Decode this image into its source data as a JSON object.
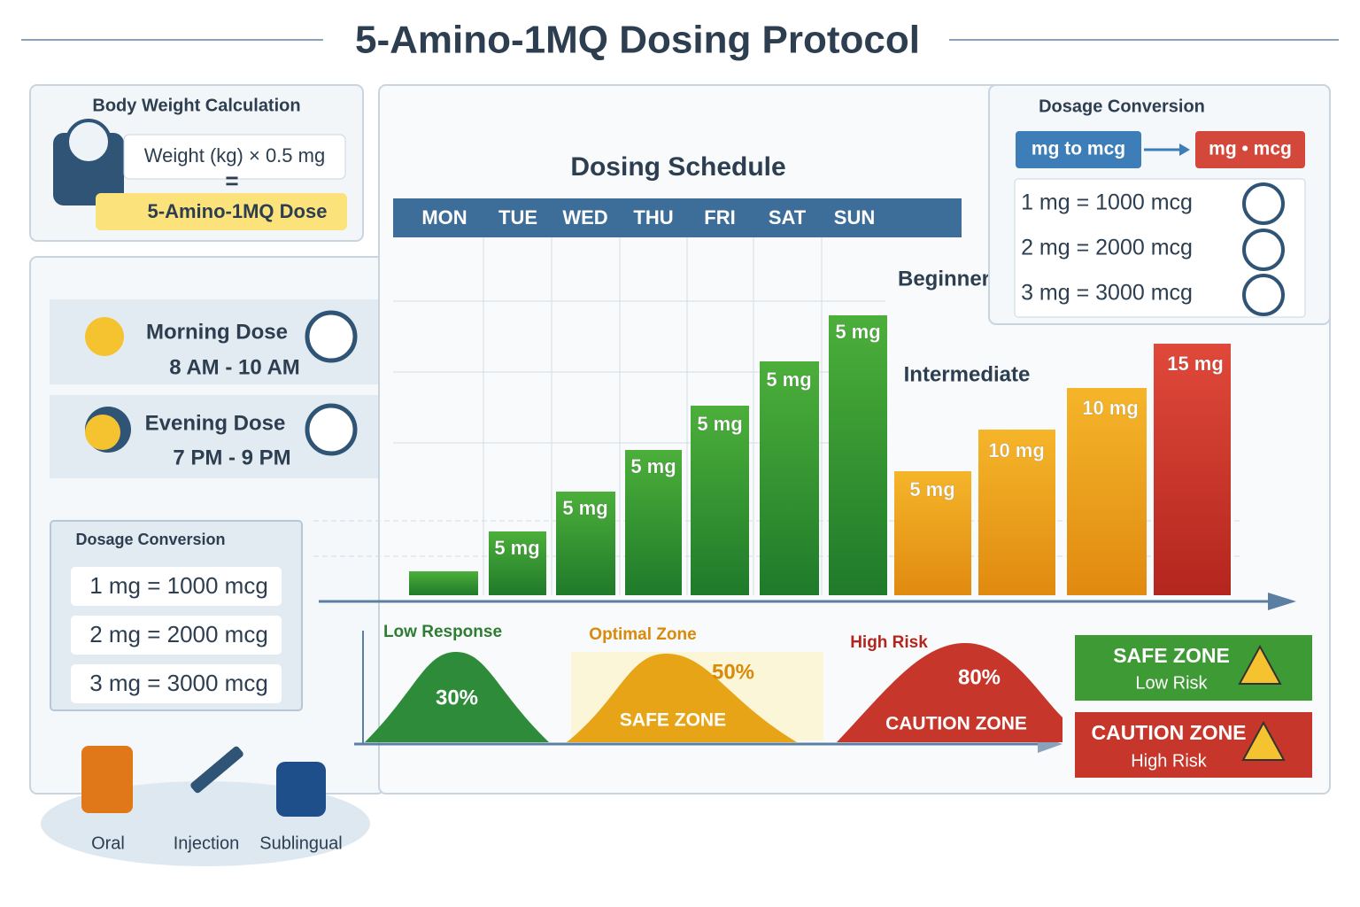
{
  "title": "5-Amino-1MQ Dosing Protocol",
  "body_weight": {
    "heading": "Body Weight Calculation",
    "formula": "Weight (kg) × 0.5 mg",
    "equals": "=",
    "result": "5-Amino-1MQ Dose"
  },
  "timing": [
    {
      "label": "Morning Dose",
      "time": "8 AM - 10 AM"
    },
    {
      "label": "Evening Dose",
      "time": "7 PM - 9 PM"
    }
  ],
  "conversion_left": {
    "heading": "Dosage Conversion",
    "rows": [
      "1 mg = 1000 mcg",
      "2 mg = 2000 mcg",
      "3 mg = 3000 mcg"
    ]
  },
  "routes": [
    "Oral",
    "Injection",
    "Sublingual"
  ],
  "schedule": {
    "heading": "Dosing Schedule",
    "days": [
      "MON",
      "TUE",
      "WED",
      "THU",
      "FRI",
      "SAT",
      "SUN"
    ],
    "levels": [
      "Beginner",
      "Intermediate"
    ],
    "bar_labels": [
      "5 mg",
      "5 mg",
      "5 mg",
      "5 mg",
      "5 mg",
      "5 mg",
      "5 mg",
      "10 mg",
      "10 mg",
      "15 mg"
    ]
  },
  "zones": [
    {
      "label": "Low Response",
      "percent": "30%"
    },
    {
      "label": "Optimal Zone",
      "percent": "50%",
      "band": "SAFE ZONE"
    },
    {
      "label": "High Risk",
      "percent": "80%",
      "band": "CAUTION ZONE"
    }
  ],
  "legend": [
    {
      "title": "SAFE ZONE",
      "sub": "Low Risk"
    },
    {
      "title": "CAUTION ZONE",
      "sub": "High Risk"
    }
  ],
  "conversion_right": {
    "heading": "Dosage Conversion",
    "from": "mg to mcg",
    "to": "mg • mcg",
    "rows": [
      "1 mg = 1000 mcg",
      "2 mg = 2000 mcg",
      "3 mg = 3000 mcg"
    ]
  }
}
